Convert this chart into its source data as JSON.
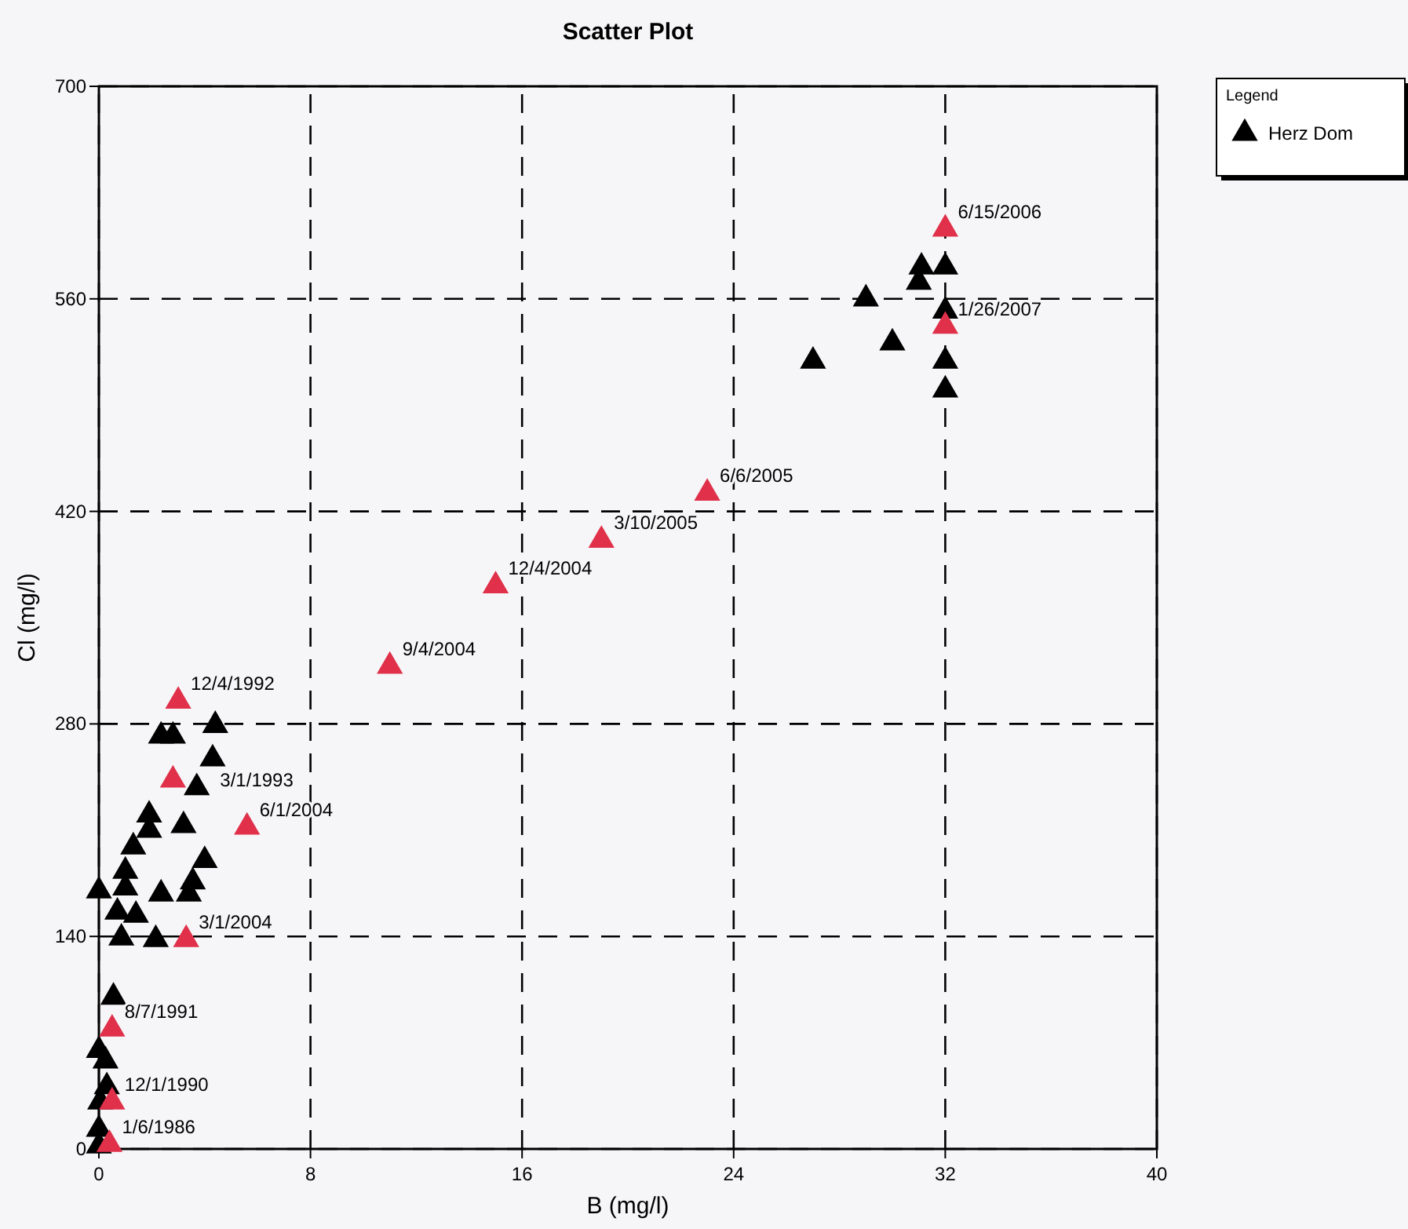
{
  "chart_data": {
    "type": "scatter",
    "title": "Scatter Plot",
    "xlabel": "B (mg/l)",
    "ylabel": "Cl (mg/l)",
    "legend_title": "Legend",
    "legend": "top right",
    "marker": "triangle",
    "grid": true,
    "line_style": "dashed",
    "xlim": [
      0,
      40
    ],
    "xticks": [
      0,
      8,
      16,
      24,
      32,
      40
    ],
    "ylim": [
      0,
      700
    ],
    "yticks": [
      0,
      140,
      280,
      420,
      560,
      700
    ],
    "series": [
      {
        "name": "Herz Dom",
        "color": "#000000",
        "x": [
          2.35,
          2.8,
          4.4,
          4.3,
          3.7,
          1.9,
          1.9,
          3.2,
          1.3,
          4.0,
          1.0,
          1.0,
          0,
          2.35,
          3.55,
          3.4,
          0.7,
          1.4,
          0.85,
          2.15,
          0.55,
          null,
          0,
          0.25,
          0.3,
          0.05,
          0,
          0,
          31.1,
          32,
          31,
          29,
          32,
          30,
          27,
          32,
          32
        ],
        "values": [
          272,
          272,
          279,
          257,
          238,
          220,
          210,
          213,
          199,
          190,
          183,
          172,
          170,
          168,
          176,
          168,
          156,
          154,
          139,
          138,
          100,
          null,
          65,
          58,
          41,
          31,
          13,
          2,
          581,
          581,
          571,
          560,
          552,
          531,
          519,
          519,
          500
        ]
      },
      {
        "color": "#e0304a",
        "x": [
          32,
          32,
          23,
          19,
          15,
          11,
          3,
          2.8,
          5.6,
          3.3,
          0.5,
          0.5,
          0.4
        ],
        "values": [
          606,
          542,
          432,
          401,
          371,
          318,
          295,
          243,
          212,
          138,
          79,
          31,
          3
        ]
      }
    ],
    "annotations": [
      {
        "text": "6/15/2006",
        "x": 32,
        "y": 606
      },
      {
        "text": "1/26/2007",
        "x": 32,
        "y": 542
      },
      {
        "text": "6/6/2005",
        "x": 23,
        "y": 432
      },
      {
        "text": "3/10/2005",
        "x": 19,
        "y": 401
      },
      {
        "text": "12/4/2004",
        "x": 15,
        "y": 371
      },
      {
        "text": "9/4/2004",
        "x": 11,
        "y": 318
      },
      {
        "text": "12/4/1992",
        "x": 3,
        "y": 295
      },
      {
        "text": "3/1/1993",
        "x": 2.8,
        "y": 243
      },
      {
        "text": "6/1/2004",
        "x": 5.6,
        "y": 212
      },
      {
        "text": "3/1/2004",
        "x": 3.3,
        "y": 138
      },
      {
        "text": "8/7/1991",
        "x": 0.5,
        "y": 79
      },
      {
        "text": "12/1/1990",
        "x": 0.5,
        "y": 31
      },
      {
        "text": "1/6/1986",
        "x": 0.4,
        "y": 3
      }
    ]
  }
}
